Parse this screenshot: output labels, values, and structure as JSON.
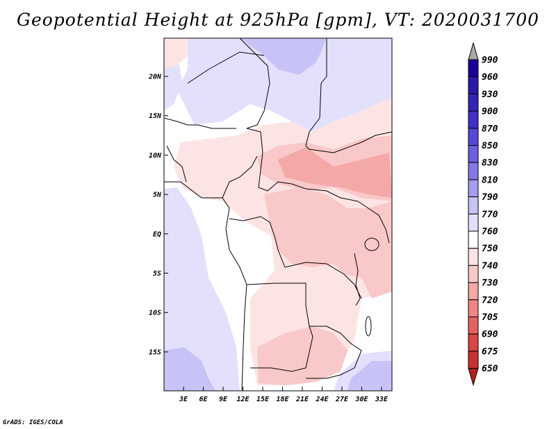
{
  "title": "Geopotential Height at 925hPa [gpm], VT: 2020031700",
  "credit": "GrADS: IGES/COLA",
  "map": {
    "lat_labels": [
      "20N",
      "15N",
      "10N",
      "5N",
      "EQ",
      "5S",
      "10S",
      "15S"
    ],
    "lon_labels": [
      "3E",
      "6E",
      "9E",
      "12E",
      "15E",
      "18E",
      "21E",
      "24E",
      "27E",
      "30E",
      "33E"
    ]
  },
  "colorbar": {
    "levels": [
      "990",
      "960",
      "930",
      "900",
      "870",
      "850",
      "830",
      "810",
      "790",
      "770",
      "760",
      "750",
      "740",
      "730",
      "720",
      "705",
      "690",
      "675",
      "650"
    ],
    "colors": [
      "#1c0098",
      "#2a1aa8",
      "#3525b5",
      "#4030c8",
      "#5548d4",
      "#6a5fdc",
      "#8478e6",
      "#a49cef",
      "#c8c3f6",
      "#e2e0fb",
      "#ffffff",
      "#fde4e4",
      "#f9c8c8",
      "#f4a8a8",
      "#ee8686",
      "#e46262",
      "#d94444",
      "#c93030",
      "#b51e1e"
    ],
    "top_color": "#a8a8a8"
  },
  "fields": {
    "base": "#ffffff",
    "light_blue": "#e2e0fb",
    "mid_blue": "#c8c3f6",
    "light_pink": "#fde4e4",
    "mid_pink": "#f9c8c8",
    "dark_pink": "#f4a8a8"
  }
}
